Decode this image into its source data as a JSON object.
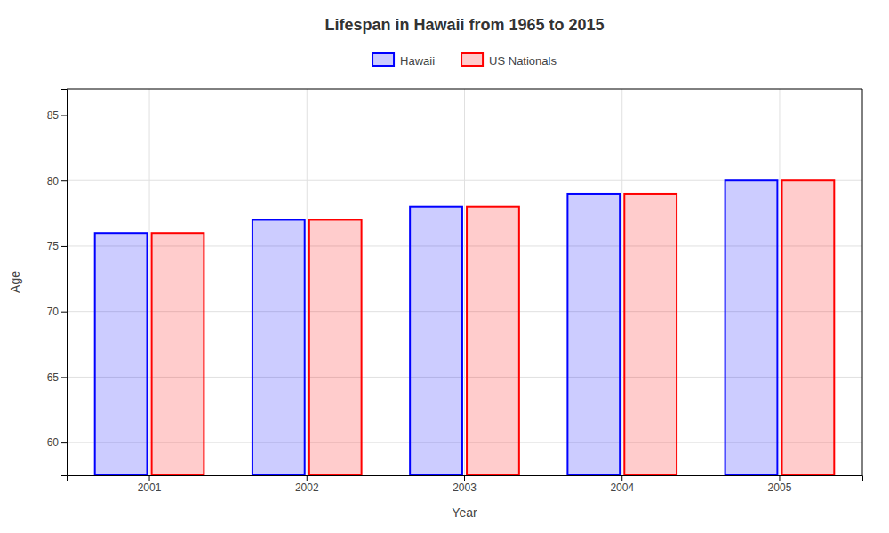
{
  "chart_data": {
    "type": "bar",
    "title": "Lifespan in Hawaii from 1965 to 2015",
    "xlabel": "Year",
    "ylabel": "Age",
    "categories": [
      "2001",
      "2002",
      "2003",
      "2004",
      "2005"
    ],
    "series": [
      {
        "name": "Hawaii",
        "color": "#0000ff",
        "values": [
          76,
          77,
          78,
          79,
          80
        ]
      },
      {
        "name": "US Nationals",
        "color": "#ff0000",
        "values": [
          76,
          77,
          78,
          79,
          80
        ]
      }
    ],
    "ylim": [
      57.5,
      87
    ],
    "yticks": [
      60,
      65,
      70,
      75,
      80,
      85
    ],
    "grid": true,
    "legend": "top"
  }
}
